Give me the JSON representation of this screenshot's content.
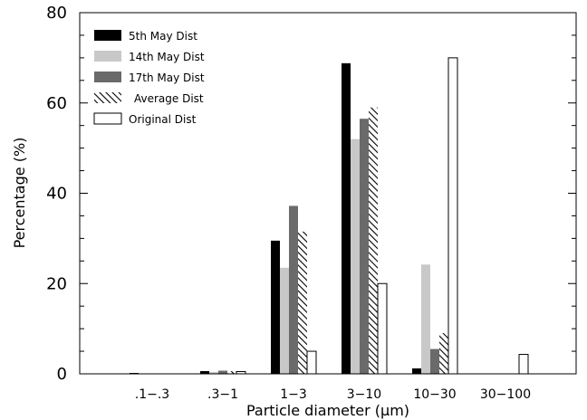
{
  "chart_data": {
    "type": "bar",
    "categories": [
      ".1-.3",
      ".3-1",
      "1-3",
      "3-10",
      "10-30",
      "30-100"
    ],
    "xlabel": "Particle diameter (μm)",
    "ylabel": "Percentage (%)",
    "ylim": [
      0,
      80
    ],
    "yticks": [
      0,
      20,
      40,
      60,
      80
    ],
    "yminor_step": 5,
    "grid": false,
    "legend_position": "top-left",
    "series": [
      {
        "name": "5th May Dist",
        "fill": "#000000",
        "pattern": "solid",
        "values": [
          0.2,
          0.6,
          29.5,
          68.8,
          1.2,
          0
        ]
      },
      {
        "name": "14th May Dist",
        "fill": "#c8c8c8",
        "pattern": "solid",
        "values": [
          0.1,
          0.4,
          23.5,
          52.0,
          24.2,
          0
        ]
      },
      {
        "name": "17th May Dist",
        "fill": "#6a6a6a",
        "pattern": "solid",
        "values": [
          0.1,
          0.7,
          37.2,
          56.5,
          5.5,
          0
        ]
      },
      {
        "name": "Average Dist",
        "fill": "#000000",
        "pattern": "hatched",
        "values": [
          0.1,
          0.6,
          31.5,
          59.0,
          9.0,
          0
        ]
      },
      {
        "name": "Original Dist",
        "fill": "#ffffff",
        "pattern": "outline",
        "values": [
          0,
          0.5,
          5.0,
          20.0,
          70.0,
          4.3
        ]
      }
    ]
  }
}
